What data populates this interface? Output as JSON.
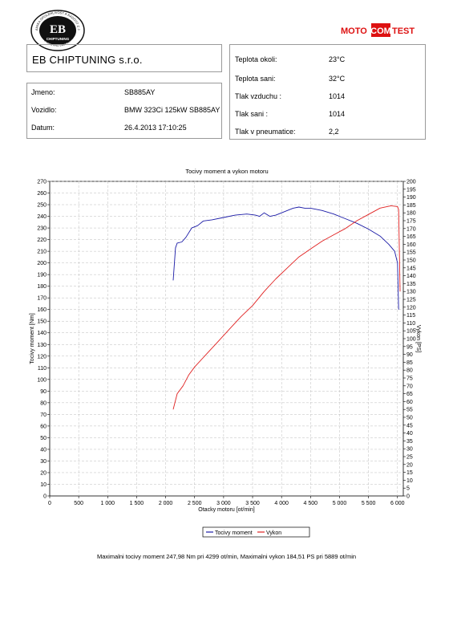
{
  "header": {
    "company": "EB CHIPTUNING s.r.o.",
    "logo": {
      "center_text": "EB",
      "top_text": "DYNAMIKA SPOLEHLIVOST A RADOST Z JÍZDY",
      "brand_text": "CHIPTUNING",
      "bottom_text": "VÍC KONÍ PRO VAŠE AUTO"
    },
    "brand_badge": {
      "moto": "MOTO",
      "com": "COM",
      "test": "TEST"
    }
  },
  "vehicle_info": [
    {
      "label": "Jmeno:",
      "value": "SB885AY"
    },
    {
      "label": "Vozidlo:",
      "value": "BMW 323Ci 125kW SB885AY"
    },
    {
      "label": "Datum:",
      "value": "26.4.2013 17:10:25"
    }
  ],
  "conditions": [
    {
      "label": "Teplota okoli:",
      "value": "23°C"
    },
    {
      "label": "Teplota sani:",
      "value": "32°C"
    },
    {
      "label": "Tlak vzduchu :",
      "value": "1014"
    },
    {
      "label": "Tlak sani :",
      "value": "1014"
    },
    {
      "label": "Tlak v pneumatice:",
      "value": "2,2"
    }
  ],
  "chart_data": {
    "type": "line",
    "title": "Tocivy moment a vykon motoru",
    "xlabel": "Otacky motoru [ot/min]",
    "ylabel_left": "Tocivy moment [Nm]",
    "ylabel_right": "Vykon [PS]",
    "xlim": [
      0,
      6100
    ],
    "ylim_left": [
      0,
      270
    ],
    "ylim_right": [
      0,
      200
    ],
    "x_ticks": [
      0,
      500,
      1000,
      1500,
      2000,
      2500,
      3000,
      3500,
      4000,
      4500,
      5000,
      5500,
      6000
    ],
    "x_tick_labels": [
      "0",
      "500",
      "1 000",
      "1 500",
      "2 000",
      "2 500",
      "3 000",
      "3 500",
      "4 000",
      "4 500",
      "5 000",
      "5 500",
      "6 000"
    ],
    "y_left_ticks": [
      0,
      10,
      20,
      30,
      40,
      50,
      60,
      70,
      80,
      90,
      100,
      110,
      120,
      130,
      140,
      150,
      160,
      170,
      180,
      190,
      200,
      210,
      220,
      230,
      240,
      250,
      260,
      270
    ],
    "y_right_ticks": [
      0,
      5,
      10,
      15,
      20,
      25,
      30,
      35,
      40,
      45,
      50,
      55,
      60,
      65,
      70,
      75,
      80,
      85,
      90,
      95,
      100,
      105,
      110,
      115,
      120,
      125,
      130,
      135,
      140,
      145,
      150,
      155,
      160,
      165,
      170,
      175,
      180,
      185,
      190,
      195,
      200
    ],
    "grid": "dashed",
    "legend": "bottom",
    "series": [
      {
        "name": "Tocivy moment",
        "axis": "left",
        "color": "#1a1aa6",
        "points": [
          [
            2130,
            185
          ],
          [
            2170,
            213
          ],
          [
            2200,
            217
          ],
          [
            2280,
            218
          ],
          [
            2350,
            222
          ],
          [
            2450,
            230
          ],
          [
            2550,
            232
          ],
          [
            2650,
            236
          ],
          [
            2800,
            237
          ],
          [
            3000,
            239
          ],
          [
            3200,
            241
          ],
          [
            3400,
            242
          ],
          [
            3550,
            241
          ],
          [
            3620,
            240
          ],
          [
            3700,
            243
          ],
          [
            3800,
            240
          ],
          [
            3900,
            241
          ],
          [
            4000,
            243
          ],
          [
            4100,
            245
          ],
          [
            4200,
            247
          ],
          [
            4299,
            247.98
          ],
          [
            4400,
            247
          ],
          [
            4500,
            247
          ],
          [
            4700,
            245
          ],
          [
            4900,
            242
          ],
          [
            5100,
            238
          ],
          [
            5300,
            234
          ],
          [
            5500,
            229
          ],
          [
            5700,
            223
          ],
          [
            5850,
            216
          ],
          [
            5950,
            210
          ],
          [
            6000,
            200
          ],
          [
            6020,
            160
          ]
        ]
      },
      {
        "name": "Vykon",
        "axis": "right",
        "color": "#e02020",
        "points": [
          [
            2130,
            55
          ],
          [
            2200,
            65
          ],
          [
            2300,
            70
          ],
          [
            2400,
            77
          ],
          [
            2500,
            82
          ],
          [
            2700,
            90
          ],
          [
            2900,
            98
          ],
          [
            3100,
            106
          ],
          [
            3300,
            114
          ],
          [
            3500,
            121
          ],
          [
            3700,
            130
          ],
          [
            3900,
            138
          ],
          [
            4100,
            145
          ],
          [
            4300,
            152
          ],
          [
            4500,
            157
          ],
          [
            4700,
            162
          ],
          [
            4900,
            166
          ],
          [
            5100,
            170
          ],
          [
            5300,
            175
          ],
          [
            5500,
            179
          ],
          [
            5700,
            183
          ],
          [
            5889,
            184.51
          ],
          [
            6000,
            184
          ],
          [
            6020,
            182
          ],
          [
            6045,
            130
          ]
        ]
      }
    ]
  },
  "summary": "Maximalni tocivy moment 247,98 Nm pri 4299 ot/min,  Maximalni vykon 184,51 PS pri 5889 ot/min"
}
